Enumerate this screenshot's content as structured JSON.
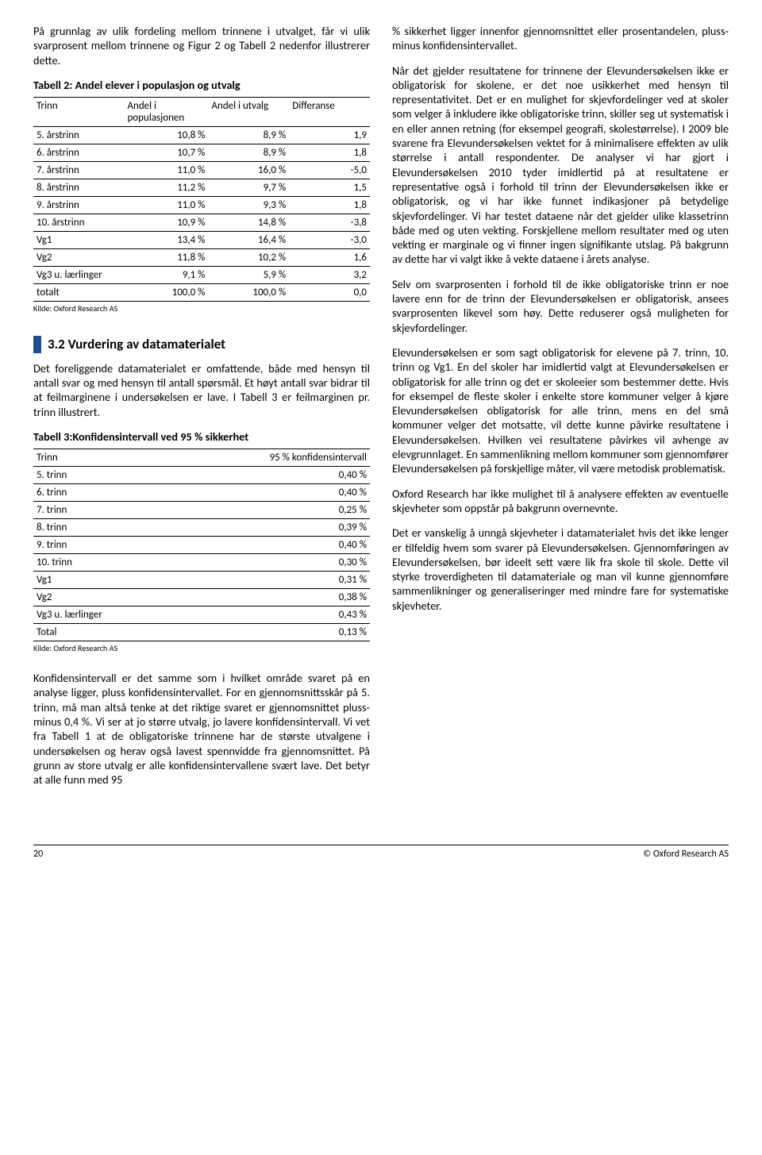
{
  "left": {
    "intro_p": "På grunnlag av ulik fordeling mellom trinnene i utvalget, får vi ulik svarprosent mellom trinnene og Figur 2 og Tabell 2 nedenfor illustrerer dette.",
    "table2": {
      "title": "Tabell 2: Andel elever i populasjon og utvalg",
      "headers": [
        "Trinn",
        "Andel i populasjonen",
        "Andel i utvalg",
        "Differanse"
      ],
      "rows": [
        [
          "5. årstrinn",
          "10,8 %",
          "8,9 %",
          "1,9"
        ],
        [
          "6. årstrinn",
          "10,7 %",
          "8,9 %",
          "1,8"
        ],
        [
          "7. årstrinn",
          "11,0 %",
          "16,0 %",
          "-5,0"
        ],
        [
          "8. årstrinn",
          "11,2 %",
          "9,7 %",
          "1,5"
        ],
        [
          "9. årstrinn",
          "11,0 %",
          "9,3 %",
          "1,8"
        ],
        [
          "10. årstrinn",
          "10,9 %",
          "14,8 %",
          "-3,8"
        ],
        [
          "Vg1",
          "13,4 %",
          "16,4 %",
          "-3,0"
        ],
        [
          "Vg2",
          "11,8 %",
          "10,2 %",
          "1,6"
        ],
        [
          "Vg3 u. lærlinger",
          "9,1 %",
          "5,9 %",
          "3,2"
        ],
        [
          "totalt",
          "100,0 %",
          "100,0 %",
          "0,0"
        ]
      ],
      "note": "Kilde: Oxford Research AS"
    },
    "section": {
      "number_title": "3.2 Vurdering av datamaterialet",
      "p1": "Det foreliggende datamaterialet er omfattende, både med hensyn til antall svar og med hensyn til antall spørsmål. Et høyt antall svar bidrar til at feilmarginene i undersøkelsen er lave. I Tabell 3 er feilmarginen pr. trinn illustrert."
    },
    "table3": {
      "title": "Tabell 3:Konfidensintervall ved 95 % sikkerhet",
      "headers": [
        "Trinn",
        "95 % konfidensintervall"
      ],
      "rows": [
        [
          "5. trinn",
          "0,40 %"
        ],
        [
          "6. trinn",
          "0,40 %"
        ],
        [
          "7. trinn",
          "0,25 %"
        ],
        [
          "8. trinn",
          "0,39 %"
        ],
        [
          "9. trinn",
          "0,40 %"
        ],
        [
          "10. trinn",
          "0,30 %"
        ],
        [
          "Vg1",
          "0,31 %"
        ],
        [
          "Vg2",
          "0,38 %"
        ],
        [
          "Vg3 u. lærlinger",
          "0,43 %"
        ],
        [
          "Total",
          "0,13 %"
        ]
      ],
      "note": "Kilde: Oxford Research AS"
    },
    "closing_p": "Konfidensintervall er det samme som i hvilket område svaret på en analyse ligger, pluss konfidensintervallet. For en gjennomsnittsskår på 5. trinn, må man altså tenke at det riktige svaret er gjennomsnittet pluss- minus 0,4 %. Vi ser at jo større utvalg, jo lavere konfidensintervall. Vi vet fra Tabell 1 at de obligatoriske trinnene har de største utvalgene i undersøkelsen og herav også lavest spennvidde fra gjennomsnittet. På grunn av store utvalg er alle konfidensintervallene svært lave. Det betyr at alle funn med 95"
  },
  "right": {
    "p1": "% sikkerhet ligger innenfor gjennomsnittet eller prosentandelen, pluss- minus konfidensintervallet.",
    "p2": "Når det gjelder resultatene for trinnene der Elevundersøkelsen ikke er obligatorisk for skolene, er det noe usikkerhet med hensyn til representativitet. Det er en mulighet for skjevfordelinger ved at skoler som velger å inkludere ikke obligatoriske trinn, skiller seg ut systematisk i en eller annen retning (for eksempel geografi, skolestørrelse). I 2009 ble svarene fra Elevundersøkelsen vektet for å minimalisere effekten av ulik størrelse i antall respondenter. De analyser vi har gjort i Elevundersøkelsen 2010 tyder imidlertid på at resultatene er representative også i forhold til trinn der Elevundersøkelsen ikke er obligatorisk, og vi har ikke funnet indikasjoner på betydelige skjevfordelinger. Vi har testet dataene når det gjelder ulike klassetrinn både med og uten vekting. Forskjellene mellom resultater med og uten vekting er marginale og vi finner ingen signifikante utslag. På bakgrunn av dette har vi valgt ikke å vekte dataene i årets analyse.",
    "p3": "Selv om svarprosenten i forhold til de ikke obligatoriske trinn er noe lavere enn for de trinn der Elevundersøkelsen er obligatorisk, ansees svarprosenten likevel som høy. Dette reduserer også muligheten for skjevfordelinger.",
    "p4": "Elevundersøkelsen er som sagt obligatorisk for elevene på 7. trinn, 10. trinn og Vg1. En del skoler har imidlertid valgt at Elevundersøkelsen er obligatorisk for alle trinn og det er skoleeier som bestemmer dette. Hvis for eksempel de fleste skoler i enkelte store kommuner velger å kjøre Elevundersøkelsen obligatorisk for alle trinn, mens en del små kommuner velger det motsatte, vil dette kunne påvirke resultatene i Elevundersøkelsen. Hvilken vei resultatene påvirkes vil avhenge av elevgrunnlaget. En sammenlikning mellom kommuner som gjennomfører Elevundersøkelsen på forskjellige måter, vil være metodisk problematisk.",
    "p5": "Oxford Research har ikke mulighet til å analysere effekten av eventuelle skjevheter som oppstår på bakgrunn overnevnte.",
    "p6": "Det er vanskelig å unngå skjevheter i datamaterialet hvis det ikke lenger er tilfeldig hvem som svarer på Elevundersøkelsen. Gjennomføringen av Elevundersøkelsen, bør ideelt sett være lik fra skole til skole. Dette vil styrke troverdigheten til datamateriale og man vil kunne gjennomføre sammenlikninger og generaliseringer med mindre fare for systematiske skjevheter."
  },
  "footer": {
    "page": "20",
    "credit": "© Oxford Research AS"
  },
  "colors": {
    "accent": "#1b4f9c",
    "text": "#000000",
    "background": "#ffffff",
    "rule": "#000000"
  }
}
